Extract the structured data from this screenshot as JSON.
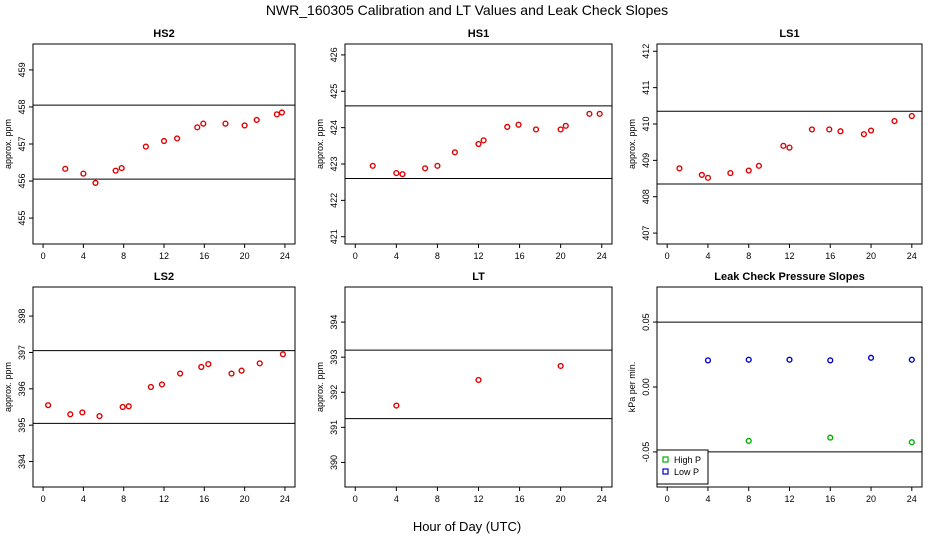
{
  "figure": {
    "title": "NWR_160305  Calibration and LT Values and Leak Check Slopes",
    "xlabel": "Hour of Day (UTC)"
  },
  "chart_data": [
    {
      "type": "scatter",
      "title": "HS2",
      "ylabel": "approx. ppm",
      "xlim": [
        -1,
        25
      ],
      "ylim": [
        454.3,
        459.7
      ],
      "xticks": [
        0,
        4,
        8,
        12,
        16,
        20,
        24
      ],
      "yticks": [
        455,
        456,
        457,
        458,
        459
      ],
      "hlines": [
        458.05,
        456.05
      ],
      "series": [
        {
          "color": "#e00000",
          "x": [
            2.2,
            4,
            5.2,
            7.2,
            7.8,
            10.2,
            12,
            13.3,
            15.3,
            15.9,
            18.1,
            20,
            21.2,
            23.2,
            23.7
          ],
          "y": [
            456.33,
            456.2,
            455.95,
            456.28,
            456.35,
            456.93,
            457.08,
            457.15,
            457.45,
            457.55,
            457.55,
            457.5,
            457.65,
            457.8,
            457.85
          ]
        }
      ]
    },
    {
      "type": "scatter",
      "title": "HS1",
      "ylabel": "approx. ppm",
      "xlim": [
        -1,
        25
      ],
      "ylim": [
        420.8,
        426.3
      ],
      "xticks": [
        0,
        4,
        8,
        12,
        16,
        20,
        24
      ],
      "yticks": [
        421,
        422,
        423,
        424,
        425,
        426
      ],
      "hlines": [
        424.6,
        422.6
      ],
      "series": [
        {
          "color": "#e00000",
          "x": [
            1.7,
            4,
            4.6,
            6.8,
            8,
            9.7,
            12,
            12.5,
            14.8,
            15.9,
            17.6,
            20,
            20.5,
            22.8,
            23.8
          ],
          "y": [
            422.95,
            422.75,
            422.72,
            422.88,
            422.95,
            423.32,
            423.55,
            423.65,
            424.02,
            424.08,
            423.95,
            423.95,
            424.05,
            424.38,
            424.38
          ]
        }
      ]
    },
    {
      "type": "scatter",
      "title": "LS1",
      "ylabel": "approx. ppm",
      "xlim": [
        -1,
        25
      ],
      "ylim": [
        406.7,
        412.2
      ],
      "xticks": [
        0,
        4,
        8,
        12,
        16,
        20,
        24
      ],
      "yticks": [
        407,
        408,
        409,
        410,
        411,
        412
      ],
      "hlines": [
        410.35,
        408.35
      ],
      "series": [
        {
          "color": "#e00000",
          "x": [
            1.2,
            3.4,
            4,
            6.2,
            8,
            9,
            11.4,
            12,
            14.2,
            15.9,
            17,
            19.3,
            20,
            22.3,
            24
          ],
          "y": [
            408.78,
            408.6,
            408.52,
            408.65,
            408.72,
            408.85,
            409.4,
            409.35,
            409.85,
            409.85,
            409.8,
            409.72,
            409.82,
            410.08,
            410.22
          ]
        }
      ]
    },
    {
      "type": "scatter",
      "title": "LS2",
      "ylabel": "approx. ppm",
      "xlim": [
        -1,
        25
      ],
      "ylim": [
        393.3,
        398.8
      ],
      "xticks": [
        0,
        4,
        8,
        12,
        16,
        20,
        24
      ],
      "yticks": [
        394,
        395,
        396,
        397,
        398
      ],
      "hlines": [
        397.05,
        395.05
      ],
      "series": [
        {
          "color": "#e00000",
          "x": [
            0.5,
            2.7,
            3.9,
            5.6,
            7.9,
            8.5,
            10.7,
            11.8,
            13.6,
            15.7,
            16.4,
            18.7,
            19.7,
            21.5,
            23.8
          ],
          "y": [
            395.55,
            395.3,
            395.35,
            395.25,
            395.5,
            395.52,
            396.05,
            396.12,
            396.42,
            396.6,
            396.68,
            396.42,
            396.5,
            396.7,
            396.95
          ]
        }
      ]
    },
    {
      "type": "scatter",
      "title": "LT",
      "ylabel": "approx. ppm",
      "xlim": [
        -1,
        25
      ],
      "ylim": [
        389.3,
        395
      ],
      "xticks": [
        0,
        4,
        8,
        12,
        16,
        20,
        24
      ],
      "yticks": [
        390,
        391,
        392,
        393,
        394
      ],
      "hlines": [
        393.2,
        391.25
      ],
      "series": [
        {
          "color": "#e00000",
          "x": [
            4,
            12,
            20
          ],
          "y": [
            391.62,
            392.35,
            392.75
          ]
        }
      ]
    },
    {
      "type": "scatter",
      "title": "Leak Check Pressure Slopes",
      "ylabel": "kPa per min.",
      "xlim": [
        -1,
        25
      ],
      "ylim": [
        -0.077,
        0.077
      ],
      "xticks": [
        0,
        4,
        8,
        12,
        16,
        20,
        24
      ],
      "yticks": [
        -0.05,
        0.0,
        0.05
      ],
      "ytick_labels": [
        "-0.05",
        "0.00",
        "0.05"
      ],
      "hlines": [
        0.05,
        -0.05
      ],
      "legend": "bottom-left",
      "series": [
        {
          "name": "High P",
          "color": "#00b000",
          "x": [
            8,
            16,
            24
          ],
          "y": [
            -0.0415,
            -0.039,
            -0.0425
          ]
        },
        {
          "name": "Low P",
          "color": "#0000cc",
          "x": [
            4,
            8,
            12,
            16,
            20,
            24
          ],
          "y": [
            0.0205,
            0.021,
            0.021,
            0.0205,
            0.0225,
            0.021
          ]
        }
      ]
    }
  ]
}
